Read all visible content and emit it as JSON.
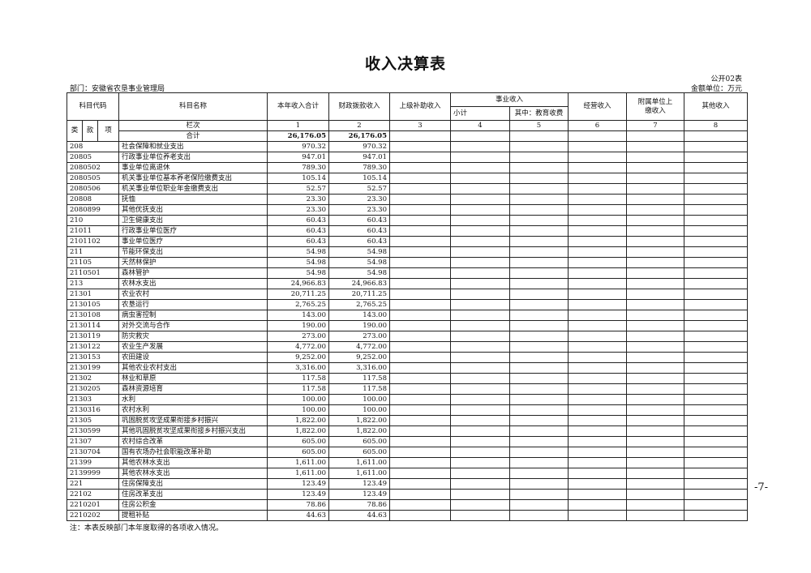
{
  "title": "收入决算表",
  "form_no": "公开02表",
  "department": "部门：安徽省农垦事业管理局",
  "unit": "金额单位：万元",
  "headers": {
    "code": "科目代码",
    "name": "科目名称",
    "total": "本年收入合计",
    "fiscal": "财政拨款收入",
    "superior": "上级补助收入",
    "business": "事业收入",
    "subtotal": "小计",
    "education": "其中：教育收费",
    "operating": "经营收入",
    "affiliated": "附属单位上缴收入",
    "other": "其他收入",
    "lei": "类",
    "kuan": "款",
    "xiang": "项",
    "column_index": "栏次",
    "col_numbers": [
      "1",
      "2",
      "3",
      "4",
      "5",
      "6",
      "7",
      "8"
    ]
  },
  "total_row": {
    "label": "合计",
    "total": "26,176.05",
    "fiscal": "26,176.05"
  },
  "rows": [
    [
      "208",
      "社会保障和就业支出",
      "970.32",
      "970.32"
    ],
    [
      "20805",
      "行政事业单位养老支出",
      "947.01",
      "947.01"
    ],
    [
      "2080502",
      "事业单位离退休",
      "789.30",
      "789.30"
    ],
    [
      "2080505",
      "机关事业单位基本养老保险缴费支出",
      "105.14",
      "105.14"
    ],
    [
      "2080506",
      "机关事业单位职业年金缴费支出",
      "52.57",
      "52.57"
    ],
    [
      "20808",
      "抚恤",
      "23.30",
      "23.30"
    ],
    [
      "2080899",
      "其他优抚支出",
      "23.30",
      "23.30"
    ],
    [
      "210",
      "卫生健康支出",
      "60.43",
      "60.43"
    ],
    [
      "21011",
      "行政事业单位医疗",
      "60.43",
      "60.43"
    ],
    [
      "2101102",
      "事业单位医疗",
      "60.43",
      "60.43"
    ],
    [
      "211",
      "节能环保支出",
      "54.98",
      "54.98"
    ],
    [
      "21105",
      "天然林保护",
      "54.98",
      "54.98"
    ],
    [
      "2110501",
      "森林管护",
      "54.98",
      "54.98"
    ],
    [
      "213",
      "农林水支出",
      "24,966.83",
      "24,966.83"
    ],
    [
      "21301",
      "农业农村",
      "20,711.25",
      "20,711.25"
    ],
    [
      "2130105",
      "农垦运行",
      "2,765.25",
      "2,765.25"
    ],
    [
      "2130108",
      "病虫害控制",
      "143.00",
      "143.00"
    ],
    [
      "2130114",
      "对外交流与合作",
      "190.00",
      "190.00"
    ],
    [
      "2130119",
      "防灾救灾",
      "273.00",
      "273.00"
    ],
    [
      "2130122",
      "农业生产发展",
      "4,772.00",
      "4,772.00"
    ],
    [
      "2130153",
      "农田建设",
      "9,252.00",
      "9,252.00"
    ],
    [
      "2130199",
      "其他农业农村支出",
      "3,316.00",
      "3,316.00"
    ],
    [
      "21302",
      "林业和草原",
      "117.58",
      "117.58"
    ],
    [
      "2130205",
      "森林资源培育",
      "117.58",
      "117.58"
    ],
    [
      "21303",
      "水利",
      "100.00",
      "100.00"
    ],
    [
      "2130316",
      "农村水利",
      "100.00",
      "100.00"
    ],
    [
      "21305",
      "巩固脱贫攻坚成果衔接乡村振兴",
      "1,822.00",
      "1,822.00"
    ],
    [
      "2130599",
      "其他巩固脱贫攻坚成果衔接乡村振兴支出",
      "1,822.00",
      "1,822.00"
    ],
    [
      "21307",
      "农村综合改革",
      "605.00",
      "605.00"
    ],
    [
      "2130704",
      "国有农场办社会职能改革补助",
      "605.00",
      "605.00"
    ],
    [
      "21399",
      "其他农林水支出",
      "1,611.00",
      "1,611.00"
    ],
    [
      "2139999",
      "其他农林水支出",
      "1,611.00",
      "1,611.00"
    ],
    [
      "221",
      "住房保障支出",
      "123.49",
      "123.49"
    ],
    [
      "22102",
      "住房改革支出",
      "123.49",
      "123.49"
    ],
    [
      "2210201",
      "住房公积金",
      "78.86",
      "78.86"
    ],
    [
      "2210202",
      "提租补贴",
      "44.63",
      "44.63"
    ]
  ],
  "note": "注：本表反映部门本年度取得的各项收入情况。",
  "page_number": "-7-"
}
